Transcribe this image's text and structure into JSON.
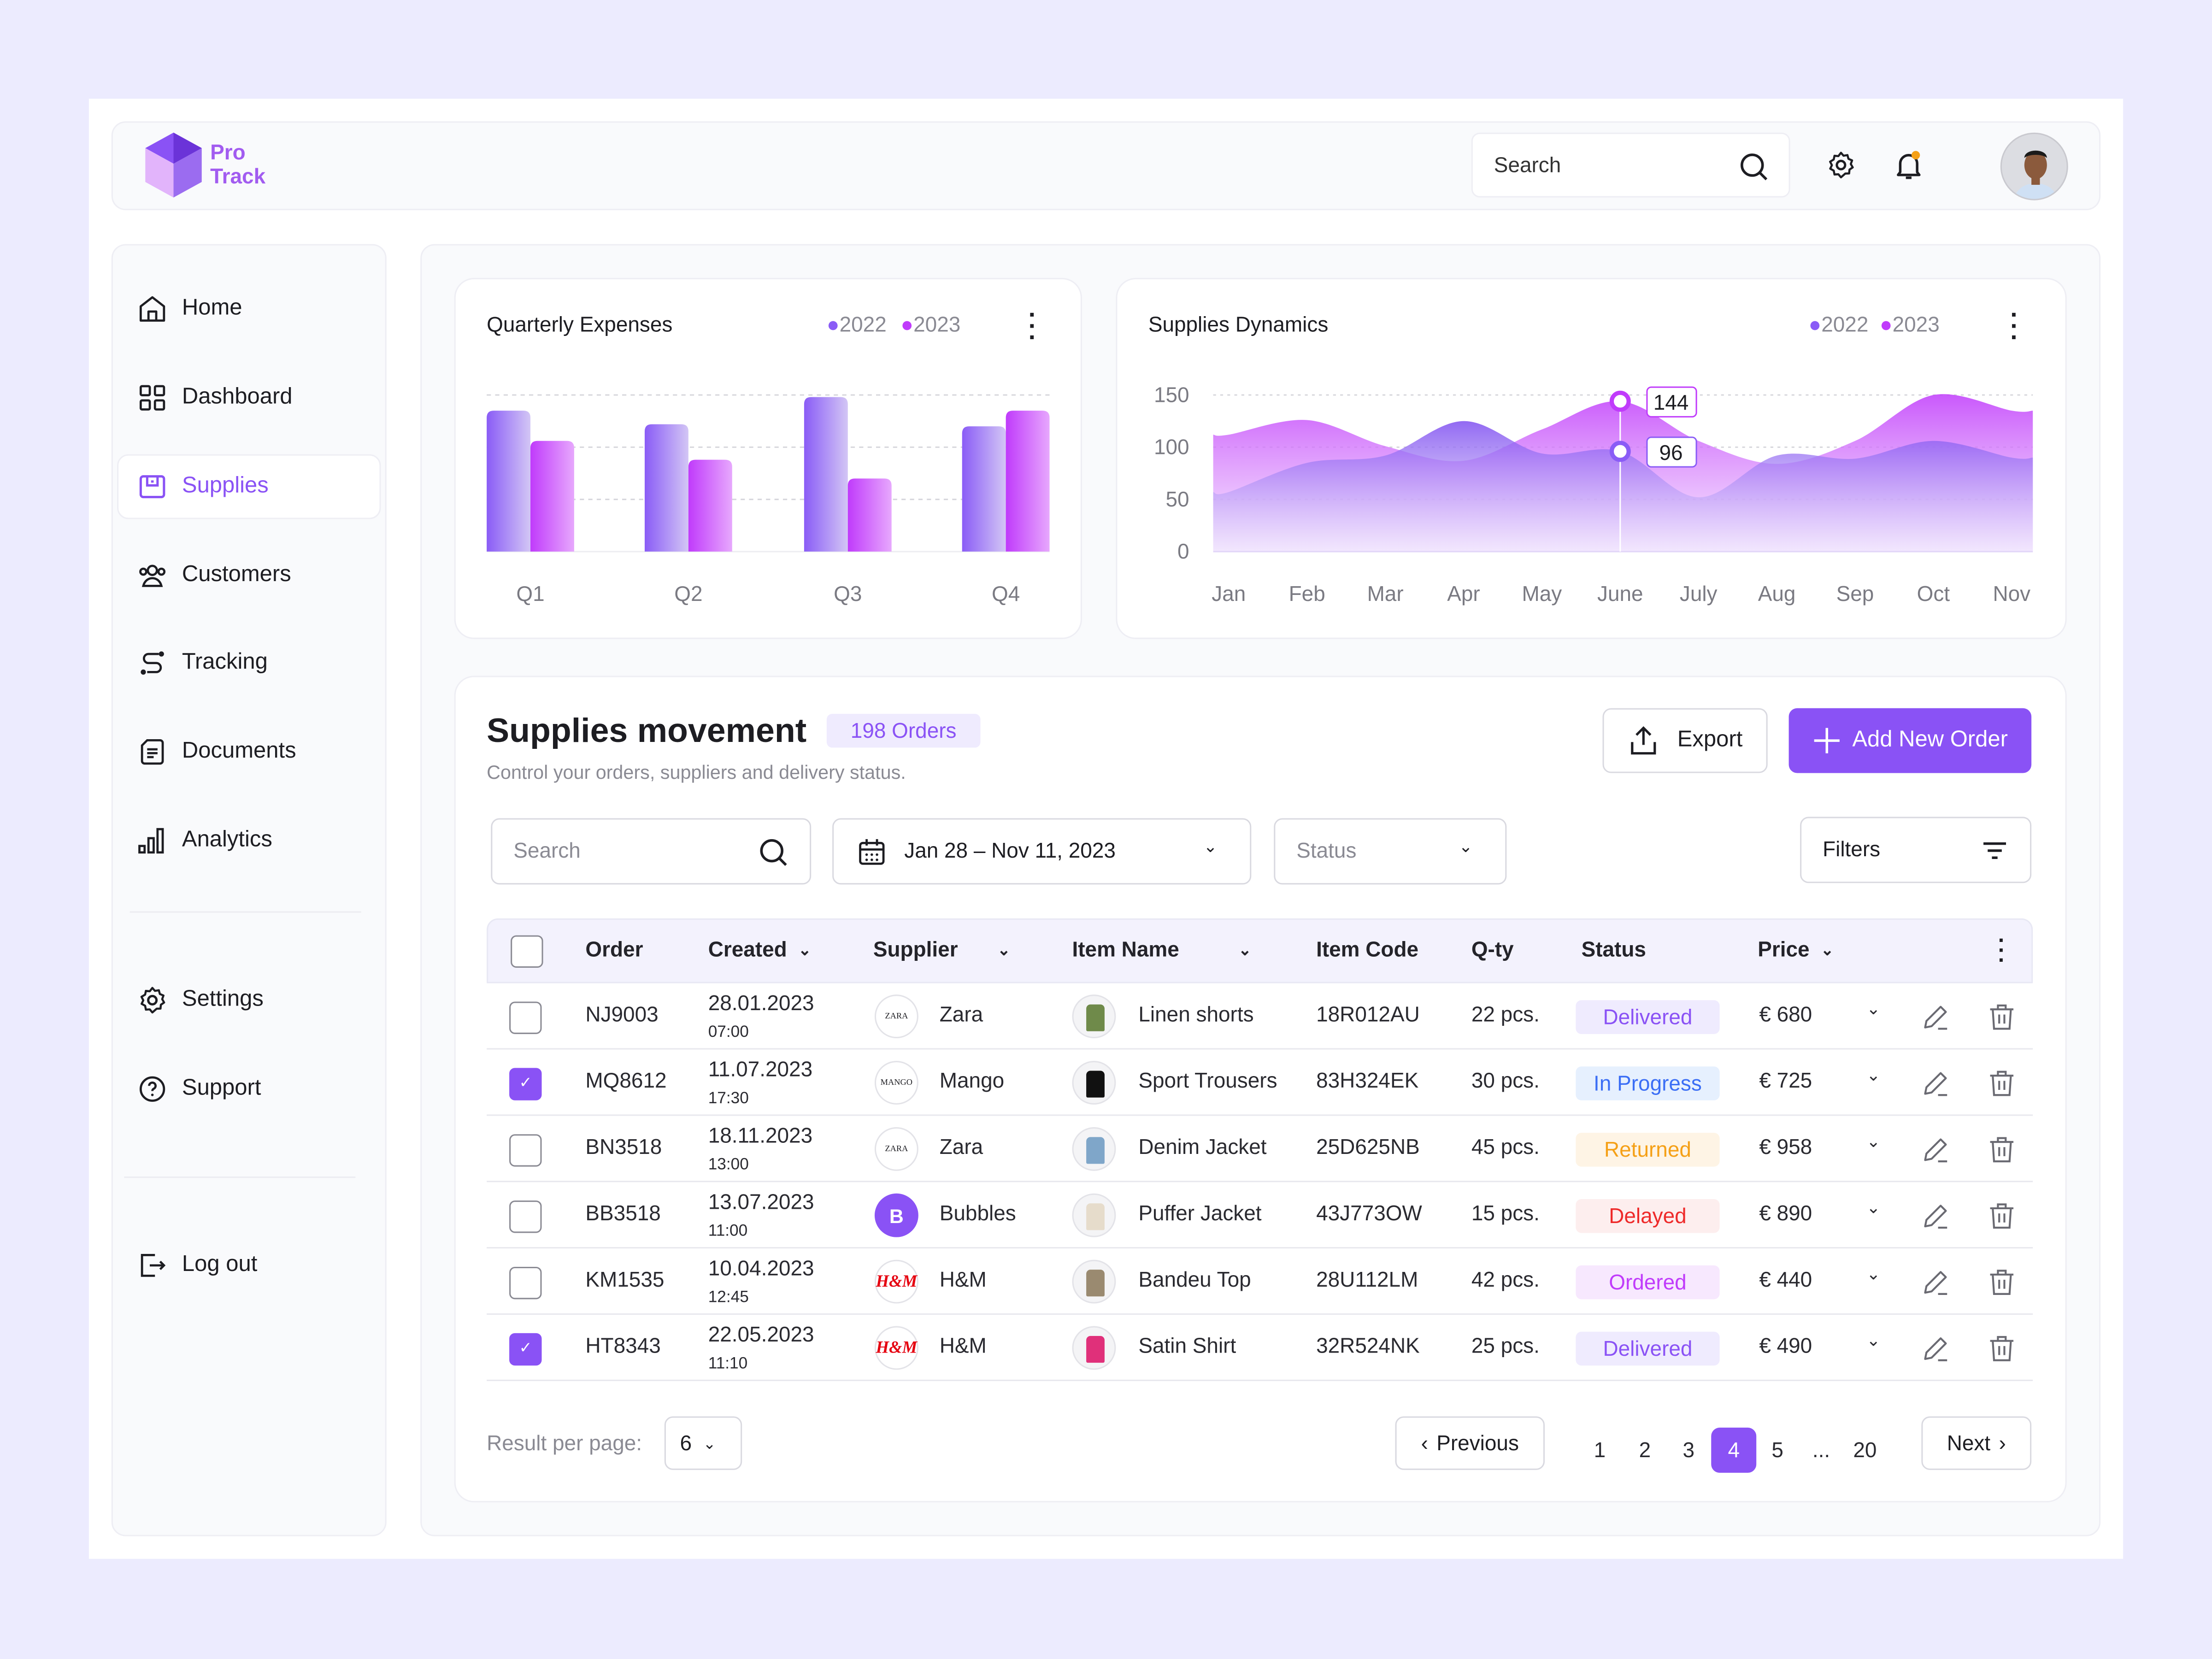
{
  "app": {
    "logo_line1": "Pro",
    "logo_line2": "Track",
    "brand_color": "#8A52F5"
  },
  "header": {
    "search_placeholder": "Search",
    "icons": [
      "search-icon",
      "gear-icon",
      "bell-icon",
      "avatar"
    ]
  },
  "sidebar": {
    "items": [
      {
        "label": "Home",
        "icon": "home-icon"
      },
      {
        "label": "Dashboard",
        "icon": "grid-icon"
      },
      {
        "label": "Supplies",
        "icon": "box-icon",
        "active": true
      },
      {
        "label": "Customers",
        "icon": "users-icon"
      },
      {
        "label": "Tracking",
        "icon": "route-icon"
      },
      {
        "label": "Documents",
        "icon": "document-icon"
      },
      {
        "label": "Analytics",
        "icon": "bar-chart-icon"
      },
      {
        "label": "Settings",
        "icon": "gear-icon"
      },
      {
        "label": "Support",
        "icon": "help-icon"
      },
      {
        "label": "Log out",
        "icon": "logout-icon"
      }
    ]
  },
  "chart_data": [
    {
      "type": "bar",
      "title": "Quarterly Expenses",
      "categories": [
        "Q1",
        "Q2",
        "Q3",
        "Q4"
      ],
      "series": [
        {
          "name": "2022",
          "color": "#8A5CF6",
          "values": [
            135,
            122,
            148,
            120
          ]
        },
        {
          "name": "2023",
          "color": "#C03BFB",
          "values": [
            106,
            88,
            70,
            135
          ]
        }
      ],
      "ylim": [
        0,
        150
      ],
      "grid": true,
      "legend": "top-right"
    },
    {
      "type": "area",
      "title": "Supplies Dynamics",
      "categories": [
        "Jan",
        "Feb",
        "Mar",
        "Apr",
        "May",
        "June",
        "July",
        "Aug",
        "Sep",
        "Oct",
        "Nov"
      ],
      "series": [
        {
          "name": "2022",
          "color": "#8A5CF6",
          "values": [
            57,
            85,
            92,
            125,
            94,
            96,
            52,
            92,
            89,
            106,
            90
          ]
        },
        {
          "name": "2023",
          "color": "#C03BFB",
          "values": [
            112,
            126,
            101,
            87,
            117,
            144,
            106,
            84,
            106,
            150,
            135
          ]
        }
      ],
      "yticks": [
        0,
        50,
        100,
        150
      ],
      "ylim": [
        0,
        150
      ],
      "grid": true,
      "legend": "top-right",
      "tooltip": {
        "category": "June",
        "values": [
          "144",
          "96"
        ]
      }
    }
  ],
  "supplies": {
    "title": "Supplies movement",
    "orders_badge": "198 Orders",
    "subtitle": "Control your orders, suppliers and delivery status.",
    "export_label": "Export",
    "add_label": "Add New Order",
    "search_placeholder": "Search",
    "date_range": "Jan 28 – Nov 11, 2023",
    "status_placeholder": "Status",
    "filters_label": "Filters",
    "columns": [
      "Order",
      "Created",
      "Supplier",
      "Item Name",
      "Item Code",
      "Q-ty",
      "Status",
      "Price"
    ],
    "rows": [
      {
        "checked": false,
        "order": "NJ9003",
        "date": "28.01.2023",
        "time": "07:00",
        "supplier": "Zara",
        "supplier_logo": "ZARA",
        "item": "Linen shorts",
        "code": "18R012AU",
        "qty": "22 pcs.",
        "status": "Delivered",
        "price": "€ 680"
      },
      {
        "checked": true,
        "order": "MQ8612",
        "date": "11.07.2023",
        "time": "17:30",
        "supplier": "Mango",
        "supplier_logo": "MANGO",
        "item": "Sport Trousers",
        "code": "83H324EK",
        "qty": "30 pcs.",
        "status": "In Progress",
        "price": "€ 725"
      },
      {
        "checked": false,
        "order": "BN3518",
        "date": "18.11.2023",
        "time": "13:00",
        "supplier": "Zara",
        "supplier_logo": "ZARA",
        "item": "Denim Jacket",
        "code": "25D625NB",
        "qty": "45 pcs.",
        "status": "Returned",
        "price": "€ 958"
      },
      {
        "checked": false,
        "order": "BB3518",
        "date": "13.07.2023",
        "time": "11:00",
        "supplier": "Bubbles",
        "supplier_logo": "B",
        "item": "Puffer Jacket",
        "code": "43J773OW",
        "qty": "15 pcs.",
        "status": "Delayed",
        "price": "€ 890"
      },
      {
        "checked": false,
        "order": "KM1535",
        "date": "10.04.2023",
        "time": "12:45",
        "supplier": "H&M",
        "supplier_logo": "H&M",
        "item": "Bandeu Top",
        "code": "28U112LM",
        "qty": "42 pcs.",
        "status": "Ordered",
        "price": "€ 440"
      },
      {
        "checked": true,
        "order": "HT8343",
        "date": "22.05.2023",
        "time": "11:10",
        "supplier": "H&M",
        "supplier_logo": "H&M",
        "item": "Satin Shirt",
        "code": "32R524NK",
        "qty": "25 pcs.",
        "status": "Delivered",
        "price": "€ 490"
      }
    ],
    "status_colors": {
      "Delivered": [
        "#8A52F5",
        "#EFEBFE"
      ],
      "In Progress": [
        "#3B6EF5",
        "#E6F0FE"
      ],
      "Returned": [
        "#F5A016",
        "#FEF4E5"
      ],
      "Delayed": [
        "#EE2A2A",
        "#FDEEEE"
      ],
      "Ordered": [
        "#C03BFB",
        "#F7E8FE"
      ]
    },
    "pagination": {
      "per_page_label": "Result per page:",
      "per_page": "6",
      "previous": "Previous",
      "next": "Next",
      "pages": [
        "1",
        "2",
        "3",
        "4",
        "5",
        "...",
        "20"
      ],
      "current": "4"
    }
  }
}
